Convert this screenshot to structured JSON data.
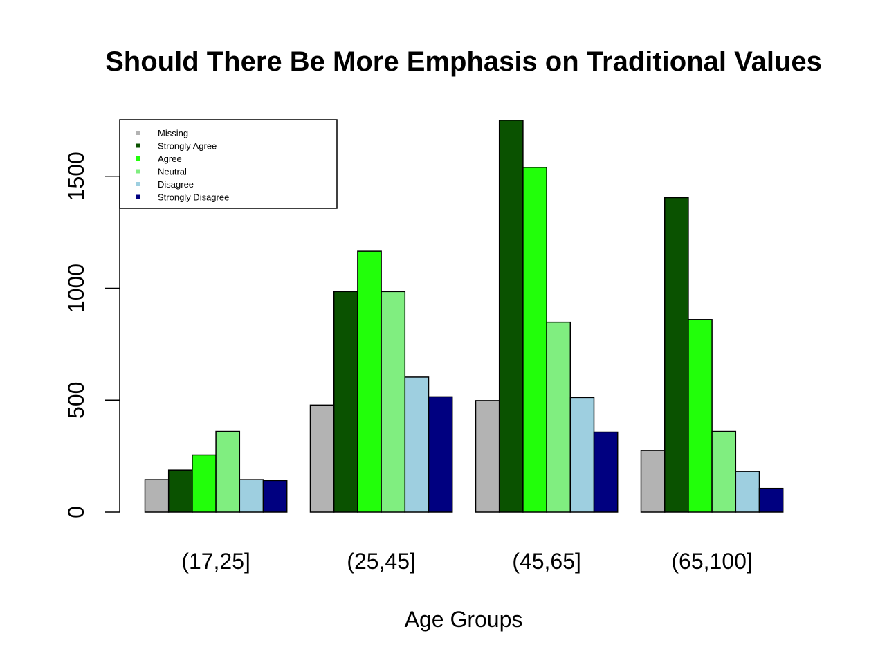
{
  "chart_data": {
    "type": "bar",
    "title": "Should There Be More Emphasis on Traditional Values",
    "xlabel": "Age Groups",
    "ylabel": "",
    "categories": [
      "(17,25]",
      "(25,45]",
      "(45,65]",
      "(65,100]"
    ],
    "yticks": [
      "0",
      "500",
      "1000",
      "1500"
    ],
    "ylim": [
      0,
      1750
    ],
    "grid": false,
    "legend_position": "top-left",
    "series": [
      {
        "name": "Missing",
        "color": "#b3b3b3",
        "values": [
          145,
          478,
          498,
          275
        ]
      },
      {
        "name": "Strongly Agree",
        "color": "#0a5200",
        "values": [
          188,
          985,
          1750,
          1405
        ]
      },
      {
        "name": "Agree",
        "color": "#22ff0a",
        "values": [
          255,
          1165,
          1540,
          860
        ]
      },
      {
        "name": "Neutral",
        "color": "#80ee80",
        "values": [
          360,
          985,
          848,
          360
        ]
      },
      {
        "name": "Disagree",
        "color": "#9ecfe0",
        "values": [
          145,
          603,
          512,
          182
        ]
      },
      {
        "name": "Strongly Disagree",
        "color": "#000080",
        "values": [
          141,
          515,
          357,
          106
        ]
      }
    ]
  }
}
